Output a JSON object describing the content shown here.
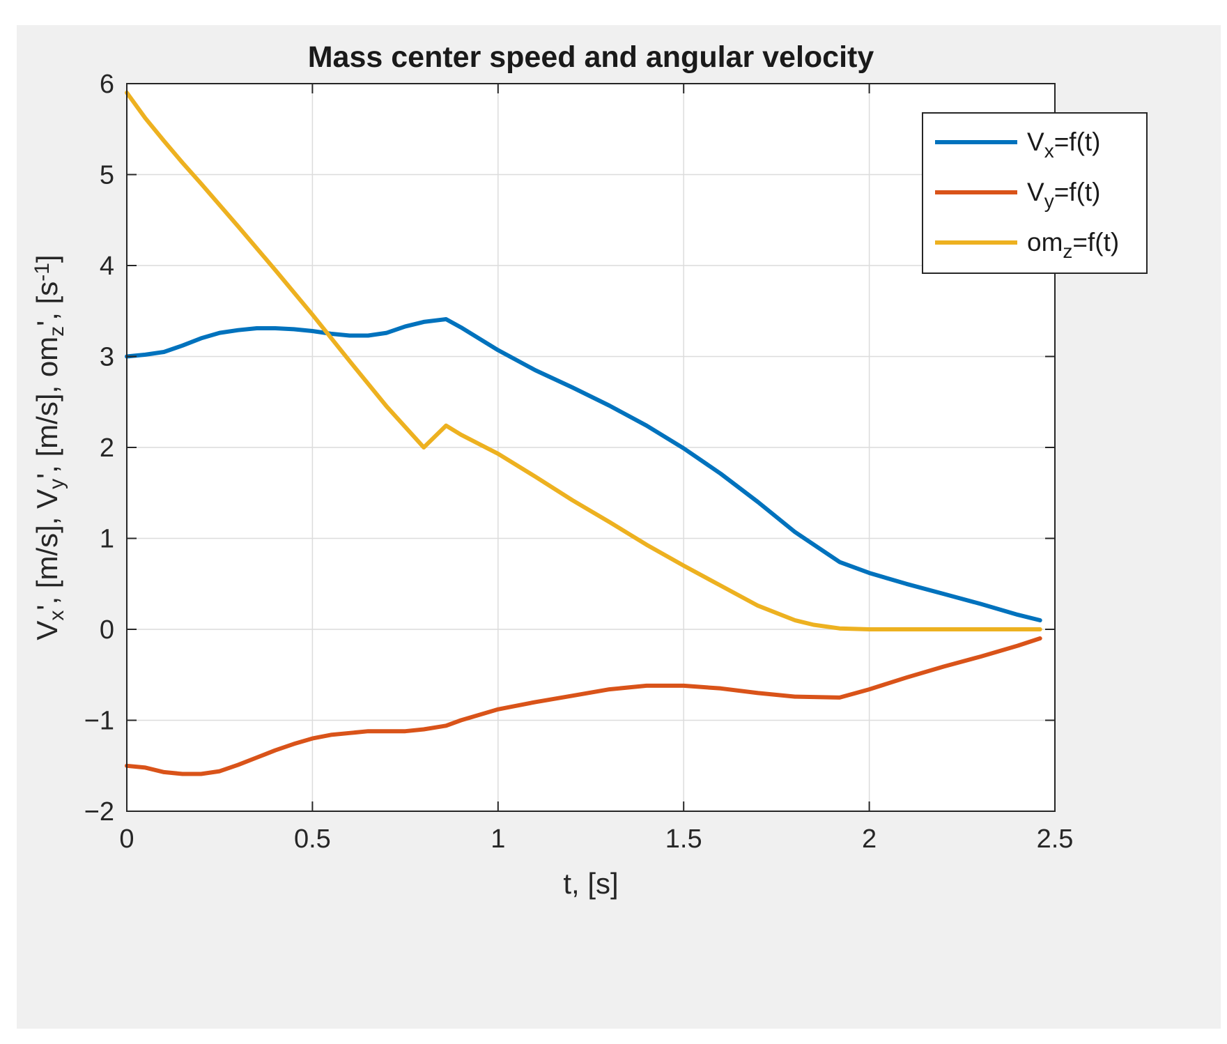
{
  "chart_data": {
    "type": "line",
    "title": "Mass center speed and angular velocity",
    "xlabel": "t, [s]",
    "ylabel": {
      "parts": [
        {
          "text": "V"
        },
        {
          "text": "x",
          "sub": true
        },
        {
          "text": "', [m/s], V"
        },
        {
          "text": "y",
          "sub": true
        },
        {
          "text": "', [m/s], om"
        },
        {
          "text": "z",
          "sub": true
        },
        {
          "text": "', [s"
        },
        {
          "text": "-1",
          "sup": true
        },
        {
          "text": "]"
        }
      ]
    },
    "xlim": [
      0,
      2.5
    ],
    "ylim": [
      -2,
      6
    ],
    "xticks": [
      0,
      0.5,
      1,
      1.5,
      2,
      2.5
    ],
    "xtick_labels": [
      "0",
      "0.5",
      "1",
      "1.5",
      "2",
      "2.5"
    ],
    "yticks": [
      -2,
      -1,
      0,
      1,
      2,
      3,
      4,
      5,
      6
    ],
    "ytick_labels": [
      "−2",
      "−1",
      "0",
      "1",
      "2",
      "3",
      "4",
      "5",
      "6"
    ],
    "grid": true,
    "legend_position": "top-right",
    "series": [
      {
        "name": "V_x=f(t)",
        "legend": {
          "base": "V",
          "sub": "x",
          "rest": "=f(t)"
        },
        "color": "#0072BD",
        "x": [
          0,
          0.05,
          0.1,
          0.15,
          0.2,
          0.25,
          0.3,
          0.35,
          0.4,
          0.45,
          0.5,
          0.55,
          0.6,
          0.65,
          0.7,
          0.75,
          0.8,
          0.86,
          0.9,
          1.0,
          1.1,
          1.2,
          1.3,
          1.4,
          1.5,
          1.6,
          1.7,
          1.8,
          1.92,
          2.0,
          2.1,
          2.2,
          2.3,
          2.4,
          2.46
        ],
        "y": [
          3.0,
          3.02,
          3.05,
          3.12,
          3.2,
          3.26,
          3.29,
          3.31,
          3.31,
          3.3,
          3.28,
          3.25,
          3.23,
          3.23,
          3.26,
          3.33,
          3.38,
          3.41,
          3.32,
          3.07,
          2.85,
          2.66,
          2.46,
          2.24,
          1.99,
          1.71,
          1.4,
          1.07,
          0.74,
          0.62,
          0.5,
          0.39,
          0.28,
          0.16,
          0.1
        ]
      },
      {
        "name": "V_y=f(t)",
        "legend": {
          "base": "V",
          "sub": "y",
          "rest": "=f(t)"
        },
        "color": "#D95319",
        "x": [
          0,
          0.05,
          0.1,
          0.15,
          0.2,
          0.25,
          0.3,
          0.35,
          0.4,
          0.45,
          0.5,
          0.55,
          0.6,
          0.65,
          0.7,
          0.75,
          0.8,
          0.86,
          0.9,
          1.0,
          1.1,
          1.2,
          1.3,
          1.4,
          1.5,
          1.6,
          1.7,
          1.8,
          1.92,
          2.0,
          2.1,
          2.2,
          2.3,
          2.4,
          2.46
        ],
        "y": [
          -1.5,
          -1.52,
          -1.57,
          -1.59,
          -1.59,
          -1.56,
          -1.49,
          -1.41,
          -1.33,
          -1.26,
          -1.2,
          -1.16,
          -1.14,
          -1.12,
          -1.12,
          -1.12,
          -1.1,
          -1.06,
          -1.0,
          -0.88,
          -0.8,
          -0.73,
          -0.66,
          -0.62,
          -0.62,
          -0.65,
          -0.7,
          -0.74,
          -0.75,
          -0.66,
          -0.53,
          -0.41,
          -0.3,
          -0.18,
          -0.1
        ]
      },
      {
        "name": "om_z=f(t)",
        "legend": {
          "base": "om",
          "sub": "z",
          "rest": "=f(t)"
        },
        "color": "#EDB120",
        "x": [
          0,
          0.05,
          0.1,
          0.15,
          0.2,
          0.3,
          0.4,
          0.5,
          0.6,
          0.7,
          0.8,
          0.86,
          0.9,
          1.0,
          1.1,
          1.2,
          1.3,
          1.4,
          1.5,
          1.6,
          1.7,
          1.8,
          1.85,
          1.92,
          2.0,
          2.2,
          2.46
        ],
        "y": [
          5.9,
          5.62,
          5.37,
          5.13,
          4.9,
          4.43,
          3.95,
          3.46,
          2.95,
          2.45,
          2.0,
          2.24,
          2.14,
          1.93,
          1.68,
          1.42,
          1.18,
          0.93,
          0.7,
          0.48,
          0.26,
          0.1,
          0.05,
          0.01,
          0.0,
          0.0,
          0.0
        ]
      }
    ]
  }
}
